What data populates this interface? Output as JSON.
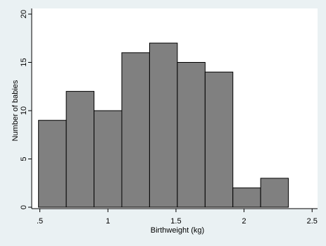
{
  "chart_data": {
    "type": "histogram",
    "x_label": "Birthweight (kg)",
    "y_label": "Number of babies",
    "bins": [
      0.49,
      0.694,
      0.898,
      1.102,
      1.306,
      1.51,
      1.714,
      1.918,
      2.122,
      2.326
    ],
    "values": [
      9,
      12,
      10,
      16,
      17,
      15,
      14,
      2,
      3
    ],
    "color": "#808080",
    "xlim": [
      0.44,
      2.54
    ],
    "ylim": [
      0,
      20
    ],
    "xticks": [
      {
        "value": 0.5,
        "label": ".5"
      },
      1,
      1.5,
      2,
      2.5
    ],
    "yticks": [
      0,
      5,
      10,
      15,
      20
    ]
  }
}
